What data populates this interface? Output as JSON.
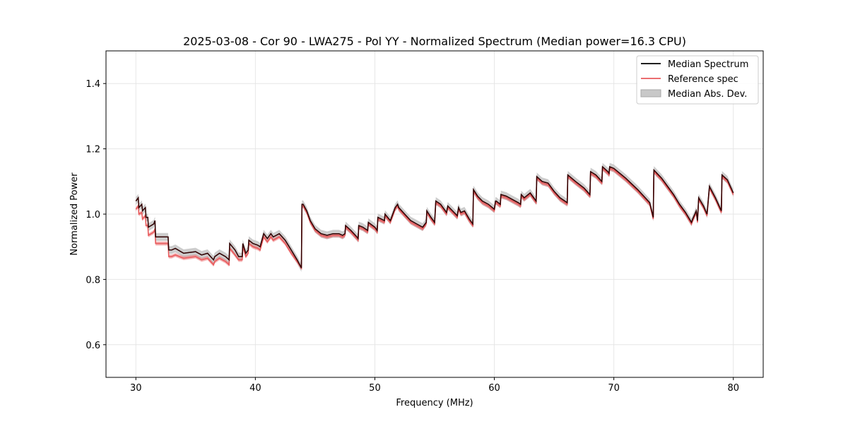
{
  "chart_data": {
    "type": "line",
    "title": "2025-03-08 - Cor 90 - LWA275 - Pol YY - Normalized Spectrum (Median power=16.3 CPU)",
    "xlabel": "Frequency (MHz)",
    "ylabel": "Normalized Power",
    "xlim": [
      27.5,
      82.5
    ],
    "ylim": [
      0.5,
      1.5
    ],
    "xticks": [
      30,
      40,
      50,
      60,
      70,
      80
    ],
    "yticks": [
      0.6,
      0.8,
      1.0,
      1.2,
      1.4
    ],
    "xtick_labels": [
      "30",
      "40",
      "50",
      "60",
      "70",
      "80"
    ],
    "ytick_labels": [
      "0.6",
      "0.8",
      "1.0",
      "1.2",
      "1.4"
    ],
    "grid": true,
    "legend_position": "top-right",
    "legend": [
      "Median Spectrum",
      "Reference spec",
      "Median Abs. Dev."
    ],
    "colors": {
      "median": "#000000",
      "reference": "#e8595b",
      "mad": "#c8c8c8",
      "grid": "#e6e6e6"
    },
    "mad_halfwidth": 0.012,
    "series": [
      {
        "name": "Median Spectrum",
        "x": [
          30.0,
          30.2,
          30.25,
          30.5,
          30.55,
          30.8,
          30.85,
          31.0,
          31.05,
          31.5,
          31.6,
          31.65,
          32.1,
          32.3,
          32.7,
          32.75,
          33.0,
          33.3,
          34.0,
          35.0,
          35.5,
          36.0,
          36.5,
          36.6,
          37.0,
          37.5,
          37.8,
          37.85,
          38.3,
          38.6,
          38.9,
          38.95,
          39.2,
          39.4,
          39.45,
          39.8,
          40.2,
          40.4,
          40.7,
          41.0,
          41.3,
          41.5,
          42.0,
          42.5,
          43.0,
          43.5,
          43.85,
          43.9,
          44.0,
          44.3,
          44.6,
          45.0,
          45.5,
          46.0,
          46.5,
          47.0,
          47.3,
          47.5,
          47.55,
          48.0,
          48.5,
          48.6,
          48.65,
          49.0,
          49.4,
          49.45,
          50.0,
          50.2,
          50.25,
          50.8,
          50.85,
          51.3,
          51.5,
          51.7,
          51.9,
          52.0,
          52.5,
          53.0,
          53.5,
          54.0,
          54.3,
          54.35,
          54.7,
          55.0,
          55.1,
          55.5,
          56.0,
          56.1,
          56.5,
          56.9,
          57.0,
          57.2,
          57.5,
          57.9,
          58.2,
          58.25,
          58.6,
          59.0,
          59.5,
          60.0,
          60.1,
          60.15,
          60.5,
          60.55,
          61.0,
          61.5,
          62.0,
          62.2,
          62.25,
          62.5,
          63.0,
          63.5,
          63.55,
          64.0,
          64.5,
          65.0,
          65.5,
          66.1,
          66.15,
          66.8,
          67.5,
          68.0,
          68.05,
          68.5,
          69.0,
          69.05,
          69.5,
          69.6,
          69.65,
          70.0,
          71.0,
          72.0,
          73.0,
          73.3,
          73.35,
          74.0,
          75.0,
          75.5,
          76.0,
          76.5,
          76.6,
          76.9,
          77.0,
          77.1,
          77.5,
          77.8,
          78.0,
          78.5,
          79.0,
          79.05,
          79.5,
          80.0
        ],
        "y": [
          1.04,
          1.05,
          1.02,
          1.03,
          1.01,
          1.02,
          0.99,
          0.99,
          0.96,
          0.97,
          0.98,
          0.93,
          0.93,
          0.93,
          0.93,
          0.89,
          0.89,
          0.895,
          0.88,
          0.885,
          0.875,
          0.88,
          0.86,
          0.87,
          0.88,
          0.87,
          0.86,
          0.91,
          0.89,
          0.87,
          0.87,
          0.91,
          0.88,
          0.89,
          0.92,
          0.91,
          0.905,
          0.9,
          0.94,
          0.925,
          0.94,
          0.93,
          0.94,
          0.92,
          0.89,
          0.86,
          0.835,
          1.03,
          1.03,
          1.01,
          0.98,
          0.955,
          0.94,
          0.935,
          0.94,
          0.94,
          0.935,
          0.94,
          0.965,
          0.95,
          0.93,
          0.925,
          0.965,
          0.96,
          0.95,
          0.975,
          0.96,
          0.95,
          0.99,
          0.98,
          1.0,
          0.98,
          1.0,
          1.02,
          1.03,
          1.02,
          1.0,
          0.98,
          0.97,
          0.96,
          0.975,
          1.01,
          0.99,
          0.975,
          1.04,
          1.03,
          1.005,
          1.025,
          1.01,
          0.995,
          1.02,
          1.005,
          1.01,
          0.985,
          0.97,
          1.075,
          1.055,
          1.04,
          1.03,
          1.015,
          1.04,
          1.04,
          1.03,
          1.06,
          1.055,
          1.045,
          1.035,
          1.03,
          1.06,
          1.05,
          1.065,
          1.04,
          1.115,
          1.1,
          1.095,
          1.07,
          1.05,
          1.035,
          1.12,
          1.1,
          1.08,
          1.06,
          1.13,
          1.12,
          1.1,
          1.145,
          1.13,
          1.125,
          1.145,
          1.14,
          1.11,
          1.075,
          1.035,
          0.99,
          1.135,
          1.11,
          1.06,
          1.03,
          1.005,
          0.975,
          0.985,
          1.01,
          0.98,
          1.05,
          1.025,
          1.0,
          1.085,
          1.05,
          1.01,
          1.12,
          1.105,
          1.065
        ]
      },
      {
        "name": "Reference spec",
        "x": [
          30.0,
          30.2,
          30.25,
          30.5,
          30.55,
          30.8,
          30.85,
          31.0,
          31.05,
          31.5,
          31.6,
          31.65,
          32.1,
          32.3,
          32.7,
          32.75,
          33.0,
          33.3,
          34.0,
          35.0,
          35.5,
          36.0,
          36.5,
          36.6,
          37.0,
          37.5,
          37.8,
          37.85,
          38.3,
          38.6,
          38.9,
          38.95,
          39.2,
          39.4,
          39.45,
          39.8,
          40.2,
          40.4,
          40.7,
          41.0,
          41.3,
          41.5,
          42.0,
          42.5,
          43.0,
          43.5,
          43.85,
          43.9,
          44.0,
          44.3,
          44.6,
          45.0,
          45.5,
          46.0,
          46.5,
          47.0,
          47.3,
          47.5,
          47.55,
          48.0,
          48.5,
          48.6,
          48.65,
          49.0,
          49.4,
          49.45,
          50.0,
          50.2,
          50.25,
          50.8,
          50.85,
          51.3,
          51.5,
          51.7,
          51.9,
          52.0,
          52.5,
          53.0,
          53.5,
          54.0,
          54.3,
          54.35,
          54.7,
          55.0,
          55.1,
          55.5,
          56.0,
          56.1,
          56.5,
          56.9,
          57.0,
          57.2,
          57.5,
          57.9,
          58.2,
          58.25,
          58.6,
          59.0,
          59.5,
          60.0,
          60.1,
          60.15,
          60.5,
          60.55,
          61.0,
          61.5,
          62.0,
          62.2,
          62.25,
          62.5,
          63.0,
          63.5,
          63.55,
          64.0,
          64.5,
          65.0,
          65.5,
          66.1,
          66.15,
          66.8,
          67.5,
          68.0,
          68.05,
          68.5,
          69.0,
          69.05,
          69.5,
          69.6,
          69.65,
          70.0,
          71.0,
          72.0,
          73.0,
          73.3,
          73.35,
          74.0,
          75.0,
          75.5,
          76.0,
          76.5,
          76.6,
          76.9,
          77.0,
          77.1,
          77.5,
          77.8,
          78.0,
          78.5,
          79.0,
          79.05,
          79.5,
          80.0
        ],
        "y": [
          1.015,
          1.025,
          1.0,
          1.005,
          0.985,
          0.995,
          0.965,
          0.965,
          0.935,
          0.945,
          0.955,
          0.91,
          0.91,
          0.91,
          0.91,
          0.87,
          0.87,
          0.875,
          0.865,
          0.87,
          0.86,
          0.865,
          0.845,
          0.855,
          0.865,
          0.855,
          0.845,
          0.895,
          0.875,
          0.86,
          0.86,
          0.9,
          0.87,
          0.88,
          0.91,
          0.9,
          0.895,
          0.89,
          0.93,
          0.915,
          0.93,
          0.92,
          0.93,
          0.91,
          0.88,
          0.855,
          0.835,
          1.025,
          1.025,
          1.005,
          0.975,
          0.95,
          0.935,
          0.93,
          0.935,
          0.935,
          0.93,
          0.935,
          0.96,
          0.945,
          0.925,
          0.92,
          0.96,
          0.955,
          0.945,
          0.97,
          0.955,
          0.945,
          0.985,
          0.975,
          0.995,
          0.975,
          0.995,
          1.015,
          1.025,
          1.015,
          0.995,
          0.975,
          0.965,
          0.955,
          0.97,
          1.005,
          0.985,
          0.97,
          1.035,
          1.025,
          1.0,
          1.02,
          1.005,
          0.99,
          1.015,
          1.0,
          1.005,
          0.98,
          0.965,
          1.07,
          1.05,
          1.035,
          1.025,
          1.01,
          1.035,
          1.035,
          1.025,
          1.055,
          1.05,
          1.04,
          1.03,
          1.025,
          1.055,
          1.045,
          1.06,
          1.035,
          1.11,
          1.095,
          1.09,
          1.065,
          1.045,
          1.03,
          1.115,
          1.095,
          1.075,
          1.055,
          1.125,
          1.115,
          1.095,
          1.14,
          1.125,
          1.12,
          1.14,
          1.135,
          1.105,
          1.07,
          1.03,
          0.985,
          1.13,
          1.105,
          1.055,
          1.025,
          1.0,
          0.97,
          0.98,
          1.005,
          0.975,
          1.045,
          1.02,
          0.995,
          1.08,
          1.045,
          1.005,
          1.115,
          1.1,
          1.06
        ]
      }
    ]
  }
}
